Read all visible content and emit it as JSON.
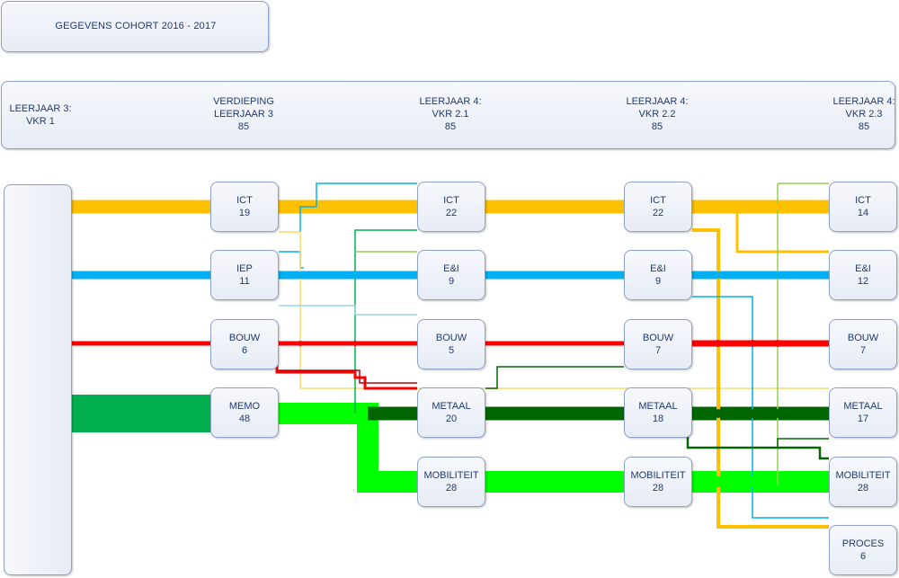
{
  "title": "GEGEVENS COHORT 2016 - 2017",
  "header": {
    "columns": [
      {
        "lines": [
          "LEERJAAR 3:",
          "VKR 1"
        ]
      },
      {
        "lines": [
          "VERDIEPING",
          "LEERJAAR 3",
          "85"
        ]
      },
      {
        "lines": [
          "LEERJAAR 4:",
          "VKR 2.1",
          "85"
        ]
      },
      {
        "lines": [
          "LEERJAAR 4:",
          "VKR 2.2",
          "85"
        ]
      },
      {
        "lines": [
          "LEERJAAR 4:",
          "VKR 2.3",
          "85"
        ]
      }
    ]
  },
  "nodes": {
    "col1": [
      {
        "label": "ICT",
        "value": "19"
      },
      {
        "label": "IEP",
        "value": "11"
      },
      {
        "label": "BOUW",
        "value": "6"
      },
      {
        "label": "MEMO",
        "value": "48"
      }
    ],
    "col2": [
      {
        "label": "ICT",
        "value": "22"
      },
      {
        "label": "E&I",
        "value": "9"
      },
      {
        "label": "BOUW",
        "value": "5"
      },
      {
        "label": "METAAL",
        "value": "20"
      },
      {
        "label": "MOBILITEIT",
        "value": "28"
      }
    ],
    "col3": [
      {
        "label": "ICT",
        "value": "22"
      },
      {
        "label": "E&I",
        "value": "9"
      },
      {
        "label": "BOUW",
        "value": "7"
      },
      {
        "label": "METAAL",
        "value": "18"
      },
      {
        "label": "MOBILITEIT",
        "value": "28"
      }
    ],
    "col4": [
      {
        "label": "ICT",
        "value": "14"
      },
      {
        "label": "E&I",
        "value": "12"
      },
      {
        "label": "BOUW",
        "value": "7"
      },
      {
        "label": "METAAL",
        "value": "17"
      },
      {
        "label": "MOBILITEIT",
        "value": "28"
      },
      {
        "label": "PROCES",
        "value": "6"
      }
    ]
  },
  "colors": {
    "ict": "#ffc000",
    "ei": "#00b0f0",
    "bouw": "#ff0000",
    "metaal": "#006600",
    "memo": "#00b050",
    "mobiliteit": "#00ff00"
  }
}
